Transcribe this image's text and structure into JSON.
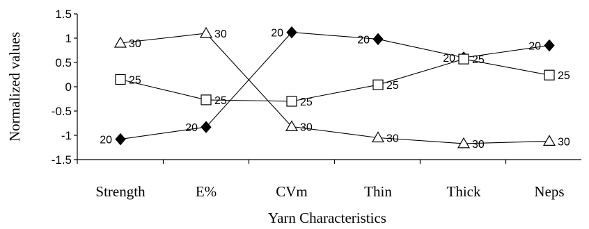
{
  "chart_data": {
    "type": "line",
    "title": "",
    "xlabel": "Yarn Characteristics",
    "ylabel": "Normalized values",
    "categories": [
      "Strength",
      "E%",
      "CVm",
      "Thin",
      "Thick",
      "Neps"
    ],
    "ylim": [
      -1.5,
      1.5
    ],
    "yticks": [
      "1.5",
      "1",
      "0.5",
      "0",
      "-0.5",
      "-1",
      "-1.5"
    ],
    "grid": false,
    "legend": "none",
    "series": [
      {
        "marker": "diamond",
        "fill": "#000000",
        "values": [
          -1.08,
          -0.83,
          1.12,
          0.98,
          0.6,
          0.85
        ],
        "labels": [
          "20",
          "20",
          "20",
          "20",
          "20",
          "20"
        ]
      },
      {
        "marker": "square",
        "fill": "#ffffff",
        "values": [
          0.15,
          -0.27,
          -0.3,
          0.04,
          0.57,
          0.24
        ],
        "labels": [
          "25",
          "25",
          "25",
          "25",
          "25",
          "25"
        ]
      },
      {
        "marker": "triangle",
        "fill": "#ffffff",
        "values": [
          0.9,
          1.1,
          -0.82,
          -1.05,
          -1.17,
          -1.12
        ],
        "labels": [
          "30",
          "30",
          "30",
          "30",
          "30",
          "30"
        ]
      }
    ]
  }
}
